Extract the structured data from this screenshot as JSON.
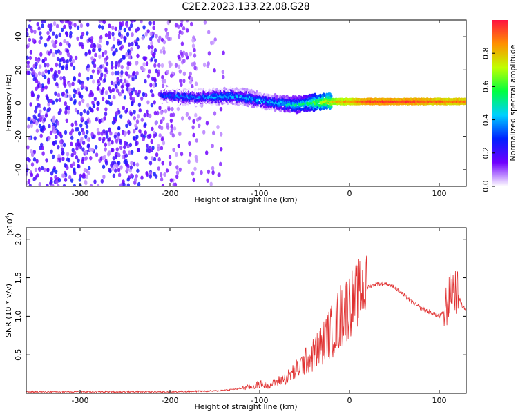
{
  "title": "C2E2.2023.133.22.08.G28",
  "chart_data": [
    {
      "type": "heatmap",
      "xlabel": "Height of straight line (km)",
      "ylabel": "Frequency (Hz)",
      "xlim": [
        -360,
        130
      ],
      "ylim": [
        -50,
        50
      ],
      "x_ticks": [
        -300,
        -200,
        -100,
        0,
        100
      ],
      "y_ticks": [
        -40,
        -20,
        0,
        20,
        40
      ],
      "colorbar": {
        "label": "Normalized spectral amplitude",
        "range": [
          0,
          1
        ],
        "ticks": [
          0.0,
          0.2,
          0.4,
          0.6,
          0.8
        ],
        "tick_labels": [
          "0.0",
          "0.2",
          "0.4",
          "0.6",
          "0.8"
        ],
        "colors": [
          "#ffffff",
          "#7000ff",
          "#0020ff",
          "#00d0ff",
          "#00ff40",
          "#c0ff00",
          "#ff9000",
          "#ff1040"
        ]
      },
      "trace": {
        "x": [
          -210,
          -190,
          -170,
          -150,
          -130,
          -110,
          -90,
          -75,
          -60,
          -45,
          -30,
          -15,
          0,
          20,
          60,
          100,
          130
        ],
        "freq": [
          5,
          4,
          3.5,
          4,
          4.5,
          3,
          1,
          0,
          -1,
          0,
          1,
          1,
          1,
          1,
          1,
          1,
          1
        ],
        "amplitude": [
          0.3,
          0.35,
          0.35,
          0.4,
          0.4,
          0.4,
          0.4,
          0.45,
          0.5,
          0.55,
          0.7,
          0.8,
          0.85,
          0.95,
          0.95,
          0.9,
          0.9
        ]
      }
    },
    {
      "type": "line",
      "xlabel": "Height of straight line (km)",
      "ylabel": "SNR (10 * v/v)",
      "y_multiplier": "(x10",
      "y_multiplier_exp": "4",
      "y_multiplier_close": ")",
      "xlim": [
        -360,
        130
      ],
      "ylim": [
        0,
        2.15
      ],
      "x_ticks": [
        -300,
        -200,
        -100,
        0,
        100
      ],
      "y_ticks": [
        0.5,
        1.0,
        1.5,
        2.0
      ],
      "y_tick_labels": [
        "0.5",
        "1.0",
        "1.5",
        "2.0"
      ],
      "series": [
        {
          "color": "#e03030",
          "x": [
            -360,
            -300,
            -200,
            -150,
            -130,
            -110,
            -100,
            -90,
            -80,
            -70,
            -60,
            -50,
            -40,
            -30,
            -20,
            -10,
            0,
            10,
            20,
            30,
            40,
            50,
            60,
            70,
            80,
            90,
            100,
            105,
            110,
            115,
            120,
            125,
            130
          ],
          "y": [
            0.02,
            0.02,
            0.02,
            0.03,
            0.05,
            0.08,
            0.12,
            0.1,
            0.15,
            0.2,
            0.3,
            0.4,
            0.5,
            0.65,
            0.8,
            1.0,
            1.15,
            1.3,
            1.38,
            1.42,
            1.43,
            1.38,
            1.28,
            1.18,
            1.1,
            1.05,
            1.0,
            1.05,
            1.2,
            1.4,
            1.3,
            1.15,
            1.08
          ]
        }
      ]
    }
  ]
}
